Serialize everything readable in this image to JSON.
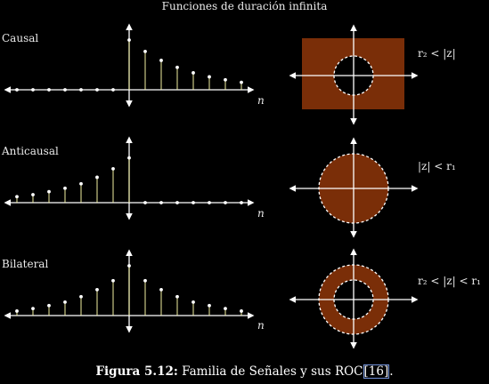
{
  "title": "Funciones de duración infinita",
  "rows": [
    {
      "label": "Causal",
      "axis_label": "n",
      "roc_text": "r₂ < |z|",
      "samples": [
        {
          "n": -7,
          "v": 0.0
        },
        {
          "n": -6,
          "v": 0.0
        },
        {
          "n": -5,
          "v": 0.0
        },
        {
          "n": -4,
          "v": 0.0
        },
        {
          "n": -3,
          "v": 0.0
        },
        {
          "n": -2,
          "v": 0.0
        },
        {
          "n": -1,
          "v": 0.0
        },
        {
          "n": 0,
          "v": 1.0
        },
        {
          "n": 1,
          "v": 0.77
        },
        {
          "n": 2,
          "v": 0.59
        },
        {
          "n": 3,
          "v": 0.45
        },
        {
          "n": 4,
          "v": 0.34
        },
        {
          "n": 5,
          "v": 0.26
        },
        {
          "n": 6,
          "v": 0.2
        },
        {
          "n": 7,
          "v": 0.15
        }
      ]
    },
    {
      "label": "Anticausal",
      "axis_label": "n",
      "roc_text": "|z| < r₁",
      "samples": [
        {
          "n": -7,
          "v": 0.12
        },
        {
          "n": -6,
          "v": 0.16
        },
        {
          "n": -5,
          "v": 0.22
        },
        {
          "n": -4,
          "v": 0.29
        },
        {
          "n": -3,
          "v": 0.38
        },
        {
          "n": -2,
          "v": 0.51
        },
        {
          "n": -1,
          "v": 0.68
        },
        {
          "n": 0,
          "v": 0.9
        },
        {
          "n": 1,
          "v": 0.0
        },
        {
          "n": 2,
          "v": 0.0
        },
        {
          "n": 3,
          "v": 0.0
        },
        {
          "n": 4,
          "v": 0.0
        },
        {
          "n": 5,
          "v": 0.0
        },
        {
          "n": 6,
          "v": 0.0
        },
        {
          "n": 7,
          "v": 0.0
        }
      ]
    },
    {
      "label": "Bilateral",
      "axis_label": "n",
      "roc_text": "r₂ < |z| < r₁",
      "samples": [
        {
          "n": -7,
          "v": 0.09
        },
        {
          "n": -6,
          "v": 0.14
        },
        {
          "n": -5,
          "v": 0.2
        },
        {
          "n": -4,
          "v": 0.27
        },
        {
          "n": -3,
          "v": 0.38
        },
        {
          "n": -2,
          "v": 0.52
        },
        {
          "n": -1,
          "v": 0.7
        },
        {
          "n": 0,
          "v": 1.0
        },
        {
          "n": 1,
          "v": 0.7
        },
        {
          "n": 2,
          "v": 0.52
        },
        {
          "n": 3,
          "v": 0.38
        },
        {
          "n": 4,
          "v": 0.27
        },
        {
          "n": 5,
          "v": 0.2
        },
        {
          "n": 6,
          "v": 0.14
        },
        {
          "n": 7,
          "v": 0.09
        }
      ]
    }
  ],
  "roc_regions": [
    {
      "shape": "rect-minus-disk"
    },
    {
      "shape": "disk"
    },
    {
      "shape": "annulus"
    }
  ],
  "caption": {
    "prefix": "Figura 5.12:",
    "text": "Familia de Señales y sus ROC",
    "citation": "[16]",
    "suffix": "."
  },
  "colors": {
    "background": "#000000",
    "axes": "#ffffff",
    "stems": "#f2f0a0",
    "roc_fill": "#7a2e08"
  }
}
